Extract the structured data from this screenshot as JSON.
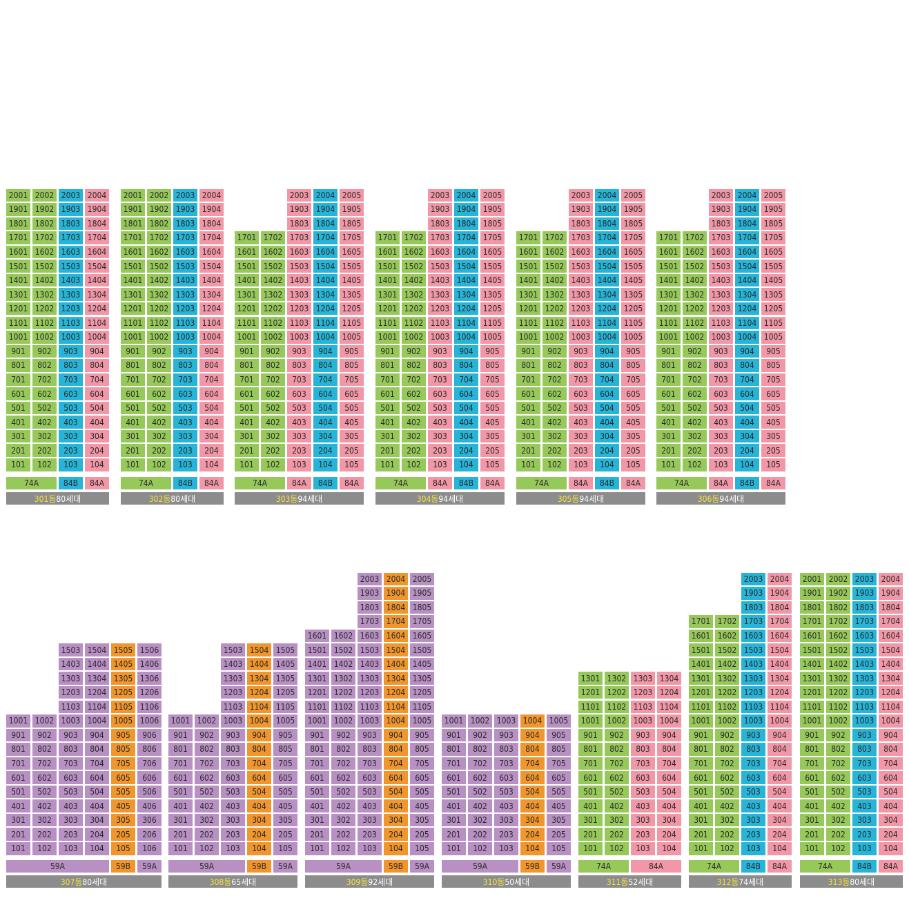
{
  "colors": {
    "green": "#97c85a",
    "blue": "#26b5d8",
    "pink": "#f197a8",
    "purple": "#b890c3",
    "orange": "#f0962c",
    "label_bg": "#8c8c8c",
    "label_name": "#f5e53b"
  },
  "buildings": [
    {
      "name": "301동",
      "count": "80세대",
      "columns": [
        {
          "unit": "01",
          "top": 20,
          "bottom": 1,
          "color": "green"
        },
        {
          "unit": "02",
          "top": 20,
          "bottom": 1,
          "color": "green"
        },
        {
          "unit": "03",
          "top": 20,
          "bottom": 1,
          "color": "blue"
        },
        {
          "unit": "04",
          "top": 20,
          "bottom": 1,
          "color": "pink"
        }
      ],
      "types": [
        {
          "label": "74A",
          "span": 2,
          "color": "green"
        },
        {
          "label": "84B",
          "span": 1,
          "color": "blue"
        },
        {
          "label": "84A",
          "span": 1,
          "color": "pink"
        }
      ]
    },
    {
      "name": "302동",
      "count": "80세대",
      "columns": [
        {
          "unit": "01",
          "top": 20,
          "bottom": 1,
          "color": "green"
        },
        {
          "unit": "02",
          "top": 20,
          "bottom": 1,
          "color": "green"
        },
        {
          "unit": "03",
          "top": 20,
          "bottom": 1,
          "color": "blue"
        },
        {
          "unit": "04",
          "top": 20,
          "bottom": 1,
          "color": "pink"
        }
      ],
      "types": [
        {
          "label": "74A",
          "span": 2,
          "color": "green"
        },
        {
          "label": "84B",
          "span": 1,
          "color": "blue"
        },
        {
          "label": "84A",
          "span": 1,
          "color": "pink"
        }
      ]
    },
    {
      "name": "303동",
      "count": "94세대",
      "columns": [
        {
          "unit": "01",
          "top": 17,
          "bottom": 1,
          "color": "green"
        },
        {
          "unit": "02",
          "top": 17,
          "bottom": 1,
          "color": "green"
        },
        {
          "unit": "03",
          "top": 20,
          "bottom": 1,
          "color": "pink"
        },
        {
          "unit": "04",
          "top": 20,
          "bottom": 1,
          "color": "blue"
        },
        {
          "unit": "05",
          "top": 20,
          "bottom": 1,
          "color": "pink"
        }
      ],
      "types": [
        {
          "label": "74A",
          "span": 2,
          "color": "green"
        },
        {
          "label": "84A",
          "span": 1,
          "color": "pink"
        },
        {
          "label": "84B",
          "span": 1,
          "color": "blue"
        },
        {
          "label": "84A",
          "span": 1,
          "color": "pink"
        }
      ]
    },
    {
      "name": "304동",
      "count": "94세대",
      "columns": [
        {
          "unit": "01",
          "top": 17,
          "bottom": 1,
          "color": "green"
        },
        {
          "unit": "02",
          "top": 17,
          "bottom": 1,
          "color": "green"
        },
        {
          "unit": "03",
          "top": 20,
          "bottom": 1,
          "color": "pink"
        },
        {
          "unit": "04",
          "top": 20,
          "bottom": 1,
          "color": "blue"
        },
        {
          "unit": "05",
          "top": 20,
          "bottom": 1,
          "color": "pink"
        }
      ],
      "types": [
        {
          "label": "74A",
          "span": 2,
          "color": "green"
        },
        {
          "label": "84A",
          "span": 1,
          "color": "pink"
        },
        {
          "label": "84B",
          "span": 1,
          "color": "blue"
        },
        {
          "label": "84A",
          "span": 1,
          "color": "pink"
        }
      ]
    },
    {
      "name": "305동",
      "count": "94세대",
      "columns": [
        {
          "unit": "01",
          "top": 17,
          "bottom": 1,
          "color": "green"
        },
        {
          "unit": "02",
          "top": 17,
          "bottom": 1,
          "color": "green"
        },
        {
          "unit": "03",
          "top": 20,
          "bottom": 1,
          "color": "pink"
        },
        {
          "unit": "04",
          "top": 20,
          "bottom": 1,
          "color": "blue"
        },
        {
          "unit": "05",
          "top": 20,
          "bottom": 1,
          "color": "pink"
        }
      ],
      "types": [
        {
          "label": "74A",
          "span": 2,
          "color": "green"
        },
        {
          "label": "84A",
          "span": 1,
          "color": "pink"
        },
        {
          "label": "84B",
          "span": 1,
          "color": "blue"
        },
        {
          "label": "84A",
          "span": 1,
          "color": "pink"
        }
      ]
    },
    {
      "name": "306동",
      "count": "94세대",
      "columns": [
        {
          "unit": "01",
          "top": 17,
          "bottom": 1,
          "color": "green"
        },
        {
          "unit": "02",
          "top": 17,
          "bottom": 1,
          "color": "green"
        },
        {
          "unit": "03",
          "top": 20,
          "bottom": 1,
          "color": "pink"
        },
        {
          "unit": "04",
          "top": 20,
          "bottom": 1,
          "color": "blue"
        },
        {
          "unit": "05",
          "top": 20,
          "bottom": 1,
          "color": "pink"
        }
      ],
      "types": [
        {
          "label": "74A",
          "span": 2,
          "color": "green"
        },
        {
          "label": "84A",
          "span": 1,
          "color": "pink"
        },
        {
          "label": "84B",
          "span": 1,
          "color": "blue"
        },
        {
          "label": "84A",
          "span": 1,
          "color": "pink"
        }
      ]
    },
    {
      "name": "307동",
      "count": "80세대",
      "columns": [
        {
          "unit": "01",
          "top": 10,
          "bottom": 1,
          "color": "purple"
        },
        {
          "unit": "02",
          "top": 10,
          "bottom": 1,
          "color": "purple"
        },
        {
          "unit": "03",
          "top": 15,
          "bottom": 1,
          "color": "purple"
        },
        {
          "unit": "04",
          "top": 15,
          "bottom": 1,
          "color": "purple"
        },
        {
          "unit": "05",
          "top": 15,
          "bottom": 1,
          "color": "orange"
        },
        {
          "unit": "06",
          "top": 15,
          "bottom": 1,
          "color": "purple"
        }
      ],
      "types": [
        {
          "label": "59A",
          "span": 4,
          "color": "purple"
        },
        {
          "label": "59B",
          "span": 1,
          "color": "orange"
        },
        {
          "label": "59A",
          "span": 1,
          "color": "purple"
        }
      ]
    },
    {
      "name": "308동",
      "count": "65세대",
      "columns": [
        {
          "unit": "01",
          "top": 10,
          "bottom": 1,
          "color": "purple"
        },
        {
          "unit": "02",
          "top": 10,
          "bottom": 1,
          "color": "purple"
        },
        {
          "unit": "03",
          "top": 15,
          "bottom": 1,
          "color": "purple"
        },
        {
          "unit": "04",
          "top": 15,
          "bottom": 1,
          "color": "orange"
        },
        {
          "unit": "05",
          "top": 15,
          "bottom": 1,
          "color": "purple"
        }
      ],
      "types": [
        {
          "label": "59A",
          "span": 3,
          "color": "purple"
        },
        {
          "label": "59B",
          "span": 1,
          "color": "orange"
        },
        {
          "label": "59A",
          "span": 1,
          "color": "purple"
        }
      ]
    },
    {
      "name": "309동",
      "count": "92세대",
      "columns": [
        {
          "unit": "01",
          "top": 16,
          "bottom": 1,
          "color": "purple"
        },
        {
          "unit": "02",
          "top": 16,
          "bottom": 1,
          "color": "purple"
        },
        {
          "unit": "03",
          "top": 20,
          "bottom": 1,
          "color": "purple"
        },
        {
          "unit": "04",
          "top": 20,
          "bottom": 1,
          "color": "orange"
        },
        {
          "unit": "05",
          "top": 20,
          "bottom": 1,
          "color": "purple"
        }
      ],
      "types": [
        {
          "label": "59A",
          "span": 3,
          "color": "purple"
        },
        {
          "label": "59B",
          "span": 1,
          "color": "orange"
        },
        {
          "label": "59A",
          "span": 1,
          "color": "purple"
        }
      ]
    },
    {
      "name": "310동",
      "count": "50세대",
      "columns": [
        {
          "unit": "01",
          "top": 10,
          "bottom": 1,
          "color": "purple"
        },
        {
          "unit": "02",
          "top": 10,
          "bottom": 1,
          "color": "purple"
        },
        {
          "unit": "03",
          "top": 10,
          "bottom": 1,
          "color": "purple"
        },
        {
          "unit": "04",
          "top": 10,
          "bottom": 1,
          "color": "orange"
        },
        {
          "unit": "05",
          "top": 10,
          "bottom": 1,
          "color": "purple"
        }
      ],
      "types": [
        {
          "label": "59A",
          "span": 3,
          "color": "purple"
        },
        {
          "label": "59B",
          "span": 1,
          "color": "orange"
        },
        {
          "label": "59A",
          "span": 1,
          "color": "purple"
        }
      ]
    },
    {
      "name": "311동",
      "count": "52세대",
      "columns": [
        {
          "unit": "01",
          "top": 13,
          "bottom": 1,
          "color": "green"
        },
        {
          "unit": "02",
          "top": 13,
          "bottom": 1,
          "color": "green"
        },
        {
          "unit": "03",
          "top": 13,
          "bottom": 1,
          "color": "pink"
        },
        {
          "unit": "04",
          "top": 13,
          "bottom": 1,
          "color": "pink"
        }
      ],
      "types": [
        {
          "label": "74A",
          "span": 2,
          "color": "green"
        },
        {
          "label": "84A",
          "span": 2,
          "color": "pink"
        }
      ]
    },
    {
      "name": "312동",
      "count": "74세대",
      "columns": [
        {
          "unit": "01",
          "top": 17,
          "bottom": 1,
          "color": "green"
        },
        {
          "unit": "02",
          "top": 17,
          "bottom": 1,
          "color": "green"
        },
        {
          "unit": "03",
          "top": 20,
          "bottom": 1,
          "color": "blue"
        },
        {
          "unit": "04",
          "top": 20,
          "bottom": 1,
          "color": "pink"
        }
      ],
      "types": [
        {
          "label": "74A",
          "span": 2,
          "color": "green"
        },
        {
          "label": "84B",
          "span": 1,
          "color": "blue"
        },
        {
          "label": "84A",
          "span": 1,
          "color": "pink"
        }
      ]
    },
    {
      "name": "313동",
      "count": "80세대",
      "columns": [
        {
          "unit": "01",
          "top": 20,
          "bottom": 1,
          "color": "green"
        },
        {
          "unit": "02",
          "top": 20,
          "bottom": 1,
          "color": "green"
        },
        {
          "unit": "03",
          "top": 20,
          "bottom": 1,
          "color": "blue"
        },
        {
          "unit": "04",
          "top": 20,
          "bottom": 1,
          "color": "pink"
        }
      ],
      "types": [
        {
          "label": "74A",
          "span": 2,
          "color": "green"
        },
        {
          "label": "84B",
          "span": 1,
          "color": "blue"
        },
        {
          "label": "84A",
          "span": 1,
          "color": "pink"
        }
      ]
    }
  ]
}
